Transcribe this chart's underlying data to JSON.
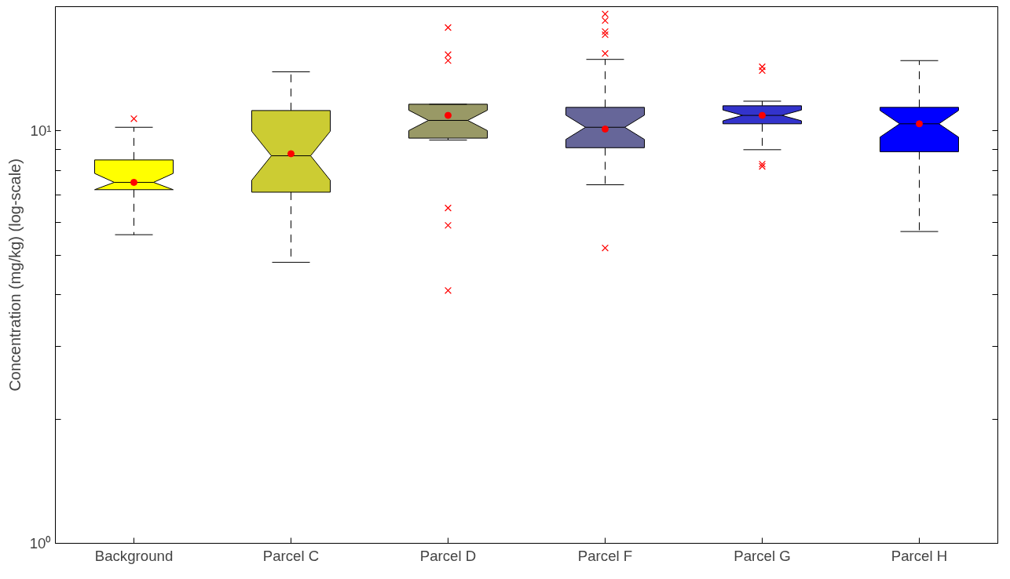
{
  "chart_data": {
    "type": "box",
    "ylabel": "Concentration (mg/kg) (log-scale)",
    "categories": [
      "Background",
      "Parcel C",
      "Parcel D",
      "Parcel F",
      "Parcel G",
      "Parcel H"
    ],
    "colors": [
      "#ffff00",
      "#cccc33",
      "#999966",
      "#666699",
      "#3333cc",
      "#0000ff"
    ],
    "boxes": [
      {
        "low": 5.6,
        "q1": 7.2,
        "median": 7.5,
        "q3": 8.5,
        "high": 10.2,
        "mean": 7.5,
        "outliers": [
          10.7
        ]
      },
      {
        "low": 4.8,
        "q1": 7.1,
        "median": 8.7,
        "q3": 11.2,
        "high": 13.9,
        "mean": 8.8
      },
      {
        "low": 9.5,
        "q1": 9.6,
        "median": 10.6,
        "q3": 11.6,
        "high": 11.6,
        "mean": 10.9,
        "outliers": [
          17.8,
          15.3,
          14.8,
          6.5,
          5.9,
          4.1
        ]
      },
      {
        "low": 7.4,
        "q1": 9.1,
        "median": 10.2,
        "q3": 11.4,
        "high": 14.9,
        "mean": 10.1,
        "outliers": [
          19.2,
          18.5,
          17.4,
          17.1,
          15.4,
          5.2
        ]
      },
      {
        "low": 9.0,
        "q1": 10.4,
        "median": 10.9,
        "q3": 11.5,
        "high": 11.8,
        "mean": 10.9,
        "outliers": [
          14.3,
          14.0,
          8.3,
          8.2
        ]
      },
      {
        "low": 5.7,
        "q1": 8.9,
        "median": 10.4,
        "q3": 11.4,
        "high": 14.8,
        "mean": 10.4
      }
    ],
    "log": "y",
    "ylim": [
      1,
      20
    ],
    "yticks": [
      {
        "value": 1,
        "label": "10⁰"
      },
      {
        "value": 2,
        "label": null
      },
      {
        "value": 3,
        "label": null
      },
      {
        "value": 4,
        "label": null
      },
      {
        "value": 5,
        "label": null
      },
      {
        "value": 6,
        "label": null
      },
      {
        "value": 7,
        "label": null
      },
      {
        "value": 8,
        "label": null
      },
      {
        "value": 9,
        "label": null
      },
      {
        "value": 10,
        "label": "10¹"
      }
    ],
    "marker": "cross"
  }
}
